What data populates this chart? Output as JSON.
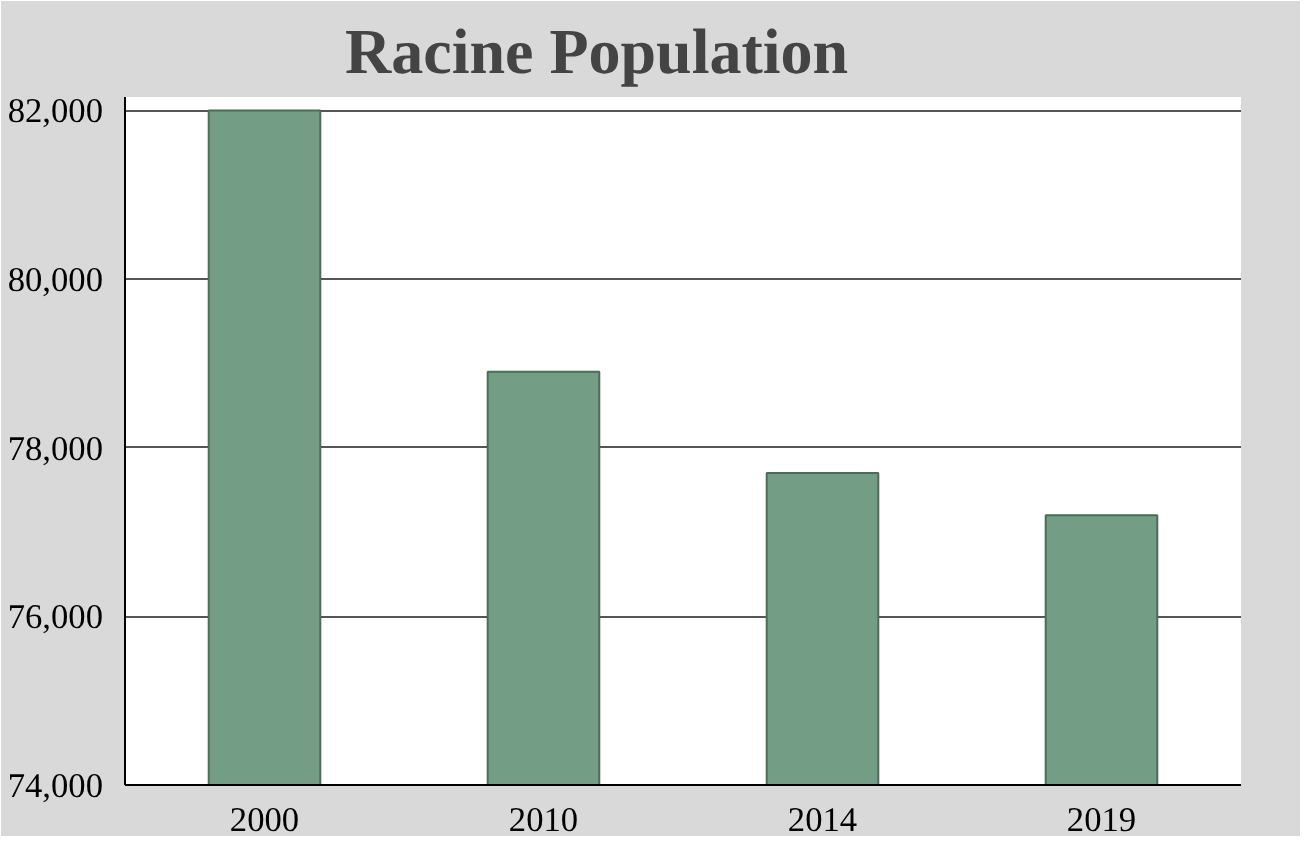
{
  "chart_data": {
    "type": "bar",
    "title": "Racine Population",
    "categories": [
      "2000",
      "2010",
      "2014",
      "2019"
    ],
    "values": [
      82000,
      78900,
      77700,
      77200
    ],
    "color": "#739e85",
    "ylim": [
      74000,
      82000
    ],
    "yticks": [
      {
        "value": 74000,
        "label": "74,000"
      },
      {
        "value": 76000,
        "label": "76,000"
      },
      {
        "value": 78000,
        "label": "78,000"
      },
      {
        "value": 80000,
        "label": "80,000"
      },
      {
        "value": 82000,
        "label": "82,000"
      }
    ],
    "grid": "y"
  }
}
